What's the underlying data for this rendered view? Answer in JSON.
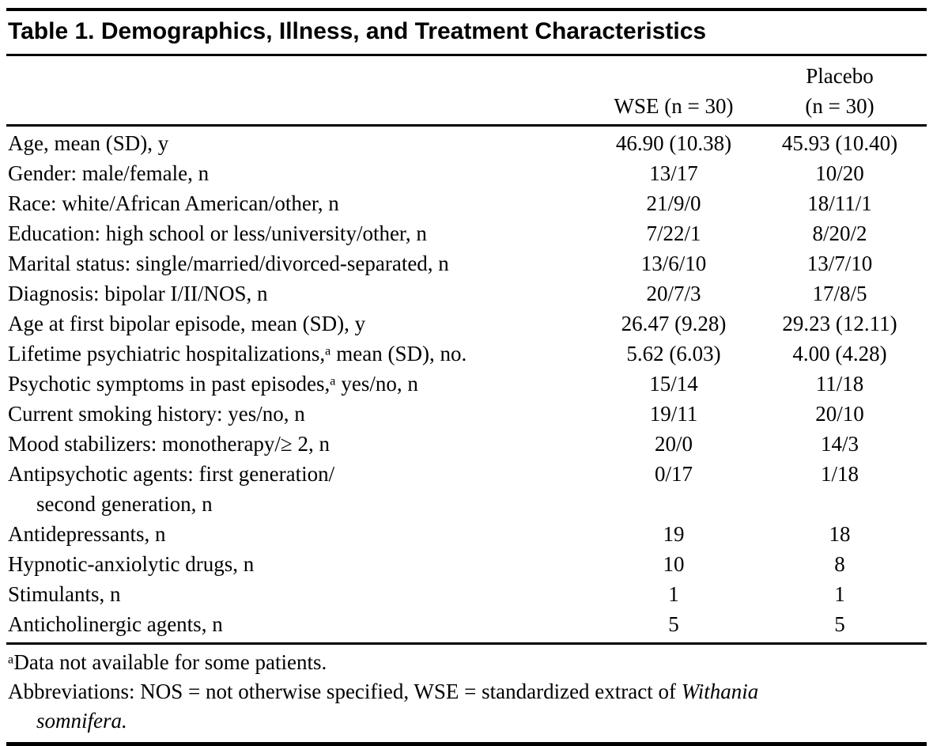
{
  "table": {
    "title": "Table 1. Demographics, Illness, and Treatment Characteristics",
    "header": {
      "wse": "WSE (n = 30)",
      "placebo_line1": "Placebo",
      "placebo_line2": "(n = 30)"
    },
    "rows": [
      {
        "label": "Age, mean (SD), y",
        "wse": "46.90 (10.38)",
        "placebo": "45.93 (10.40)"
      },
      {
        "label": "Gender: male/female, n",
        "wse": "13/17",
        "placebo": "10/20"
      },
      {
        "label": "Race: white/African American/other, n",
        "wse": "21/9/0",
        "placebo": "18/11/1"
      },
      {
        "label": "Education: high school or less/university/other, n",
        "wse": "7/22/1",
        "placebo": "8/20/2"
      },
      {
        "label": "Marital status: single/married/divorced-separated, n",
        "wse": "13/6/10",
        "placebo": "13/7/10"
      },
      {
        "label": "Diagnosis: bipolar I/II/NOS, n",
        "wse": "20/7/3",
        "placebo": "17/8/5"
      },
      {
        "label": "Age at first bipolar episode, mean (SD), y",
        "wse": "26.47 (9.28)",
        "placebo": "29.23 (12.11)"
      },
      {
        "label": "Lifetime psychiatric hospitalizations,ᵃ mean (SD), no.",
        "wse": "5.62 (6.03)",
        "placebo": "4.00 (4.28)"
      },
      {
        "label": "Psychotic symptoms in past episodes,ᵃ yes/no, n",
        "wse": "15/14",
        "placebo": "11/18"
      },
      {
        "label": "Current smoking history: yes/no, n",
        "wse": "19/11",
        "placebo": "20/10"
      },
      {
        "label": "Mood stabilizers: monotherapy/≥ 2, n",
        "wse": "20/0",
        "placebo": "14/3"
      },
      {
        "label": "Antipsychotic agents: first generation/",
        "label2": "second generation, n",
        "wse": "0/17",
        "placebo": "1/18"
      },
      {
        "label": "Antidepressants, n",
        "wse": "19",
        "placebo": "18"
      },
      {
        "label": "Hypnotic-anxiolytic drugs, n",
        "wse": "10",
        "placebo": "8"
      },
      {
        "label": "Stimulants, n",
        "wse": "1",
        "placebo": "1"
      },
      {
        "label": "Anticholinergic agents, n",
        "wse": "5",
        "placebo": "5"
      }
    ],
    "footnotes": {
      "note_a": "ᵃData not available for some patients.",
      "abbrev_prefix": "Abbreviations: NOS = not otherwise specified, WSE = standardized extract of ",
      "abbrev_italic_line1": "Withania",
      "abbrev_italic_line2": "somnifera."
    }
  }
}
